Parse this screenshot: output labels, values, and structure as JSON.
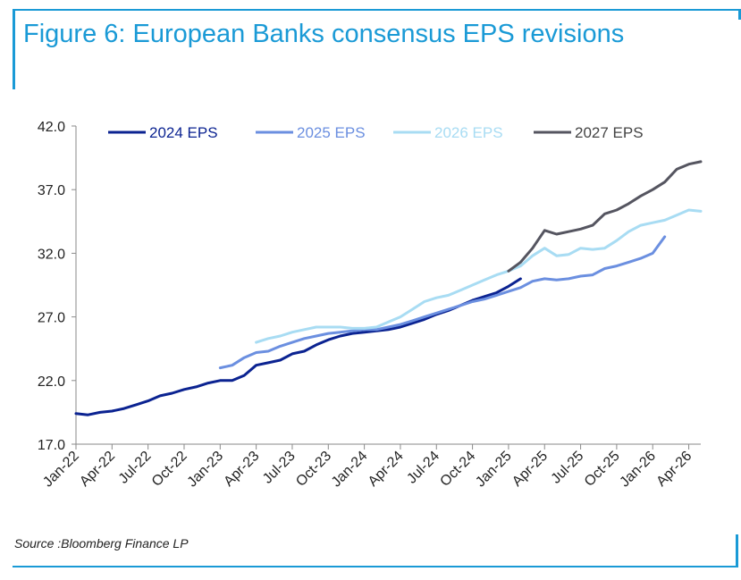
{
  "title": "Figure 6: European Banks consensus EPS revisions",
  "source": "Source :Bloomberg Finance LP",
  "chart_data": {
    "type": "line",
    "ylim": [
      17.0,
      42.0
    ],
    "yticks": [
      "17.0",
      "22.0",
      "27.0",
      "32.0",
      "37.0",
      "42.0"
    ],
    "x_tick_labels": [
      "Jan-22",
      "Apr-22",
      "Jul-22",
      "Oct-22",
      "Jan-23",
      "Apr-23",
      "Jul-23",
      "Oct-23",
      "Jan-24",
      "Apr-24",
      "Jul-24",
      "Oct-24",
      "Jan-25",
      "Apr-25",
      "Jul-25",
      "Oct-25",
      "Jan-26",
      "Apr-26"
    ],
    "x_range": [
      "2022-01",
      "2026-05"
    ],
    "legend_position": "top",
    "series": [
      {
        "name": "2024 EPS",
        "color": "#0b2391",
        "x": [
          "2022-01",
          "2022-02",
          "2022-03",
          "2022-04",
          "2022-05",
          "2022-06",
          "2022-07",
          "2022-08",
          "2022-09",
          "2022-10",
          "2022-11",
          "2022-12",
          "2023-01",
          "2023-02",
          "2023-03",
          "2023-04",
          "2023-05",
          "2023-06",
          "2023-07",
          "2023-08",
          "2023-09",
          "2023-10",
          "2023-11",
          "2023-12",
          "2024-01",
          "2024-02",
          "2024-03",
          "2024-04",
          "2024-05",
          "2024-06",
          "2024-07",
          "2024-08",
          "2024-09",
          "2024-10",
          "2024-11",
          "2024-12",
          "2025-01",
          "2025-02"
        ],
        "values": [
          19.4,
          19.3,
          19.5,
          19.6,
          19.8,
          20.1,
          20.4,
          20.8,
          21.0,
          21.3,
          21.5,
          21.8,
          22.0,
          22.0,
          22.4,
          23.2,
          23.4,
          23.6,
          24.1,
          24.3,
          24.8,
          25.2,
          25.5,
          25.7,
          25.8,
          25.9,
          26.0,
          26.2,
          26.5,
          26.8,
          27.2,
          27.5,
          27.9,
          28.3,
          28.6,
          28.9,
          29.4,
          30.0
        ]
      },
      {
        "name": "2025 EPS",
        "color": "#6b8fe0",
        "x": [
          "2023-01",
          "2023-02",
          "2023-03",
          "2023-04",
          "2023-05",
          "2023-06",
          "2023-07",
          "2023-08",
          "2023-09",
          "2023-10",
          "2023-11",
          "2023-12",
          "2024-01",
          "2024-02",
          "2024-03",
          "2024-04",
          "2024-05",
          "2024-06",
          "2024-07",
          "2024-08",
          "2024-09",
          "2024-10",
          "2024-11",
          "2024-12",
          "2025-01",
          "2025-02",
          "2025-03",
          "2025-04",
          "2025-05",
          "2025-06",
          "2025-07",
          "2025-08",
          "2025-09",
          "2025-10",
          "2025-11",
          "2025-12",
          "2026-01",
          "2026-02"
        ],
        "values": [
          23.0,
          23.2,
          23.8,
          24.2,
          24.3,
          24.7,
          25.0,
          25.3,
          25.5,
          25.7,
          25.8,
          25.9,
          26.0,
          26.0,
          26.2,
          26.4,
          26.7,
          27.0,
          27.3,
          27.6,
          27.9,
          28.2,
          28.4,
          28.7,
          29.0,
          29.3,
          29.8,
          30.0,
          29.9,
          30.0,
          30.2,
          30.3,
          30.8,
          31.0,
          31.3,
          31.6,
          32.0,
          33.3
        ]
      },
      {
        "name": "2026 EPS",
        "color": "#a8dcf3",
        "x": [
          "2023-04",
          "2023-05",
          "2023-06",
          "2023-07",
          "2023-08",
          "2023-09",
          "2023-10",
          "2023-11",
          "2023-12",
          "2024-01",
          "2024-02",
          "2024-03",
          "2024-04",
          "2024-05",
          "2024-06",
          "2024-07",
          "2024-08",
          "2024-09",
          "2024-10",
          "2024-11",
          "2024-12",
          "2025-01",
          "2025-02",
          "2025-03",
          "2025-04",
          "2025-05",
          "2025-06",
          "2025-07",
          "2025-08",
          "2025-09",
          "2025-10",
          "2025-11",
          "2025-12",
          "2026-01",
          "2026-02",
          "2026-03",
          "2026-04",
          "2026-05"
        ],
        "values": [
          25.0,
          25.3,
          25.5,
          25.8,
          26.0,
          26.2,
          26.2,
          26.2,
          26.1,
          26.1,
          26.2,
          26.6,
          27.0,
          27.6,
          28.2,
          28.5,
          28.7,
          29.1,
          29.5,
          29.9,
          30.3,
          30.6,
          31.0,
          31.8,
          32.4,
          31.8,
          31.9,
          32.4,
          32.3,
          32.4,
          33.0,
          33.7,
          34.2,
          34.4,
          34.6,
          35.0,
          35.4,
          35.3
        ]
      },
      {
        "name": "2027 EPS",
        "color": "#555560",
        "x": [
          "2025-01",
          "2025-02",
          "2025-03",
          "2025-04",
          "2025-05",
          "2025-06",
          "2025-07",
          "2025-08",
          "2025-09",
          "2025-10",
          "2025-11",
          "2025-12",
          "2026-01",
          "2026-02",
          "2026-03",
          "2026-04",
          "2026-05"
        ],
        "values": [
          30.6,
          31.3,
          32.4,
          33.8,
          33.5,
          33.7,
          33.9,
          34.2,
          35.1,
          35.4,
          35.9,
          36.5,
          37.0,
          37.6,
          38.6,
          39.0,
          39.2
        ]
      }
    ]
  }
}
